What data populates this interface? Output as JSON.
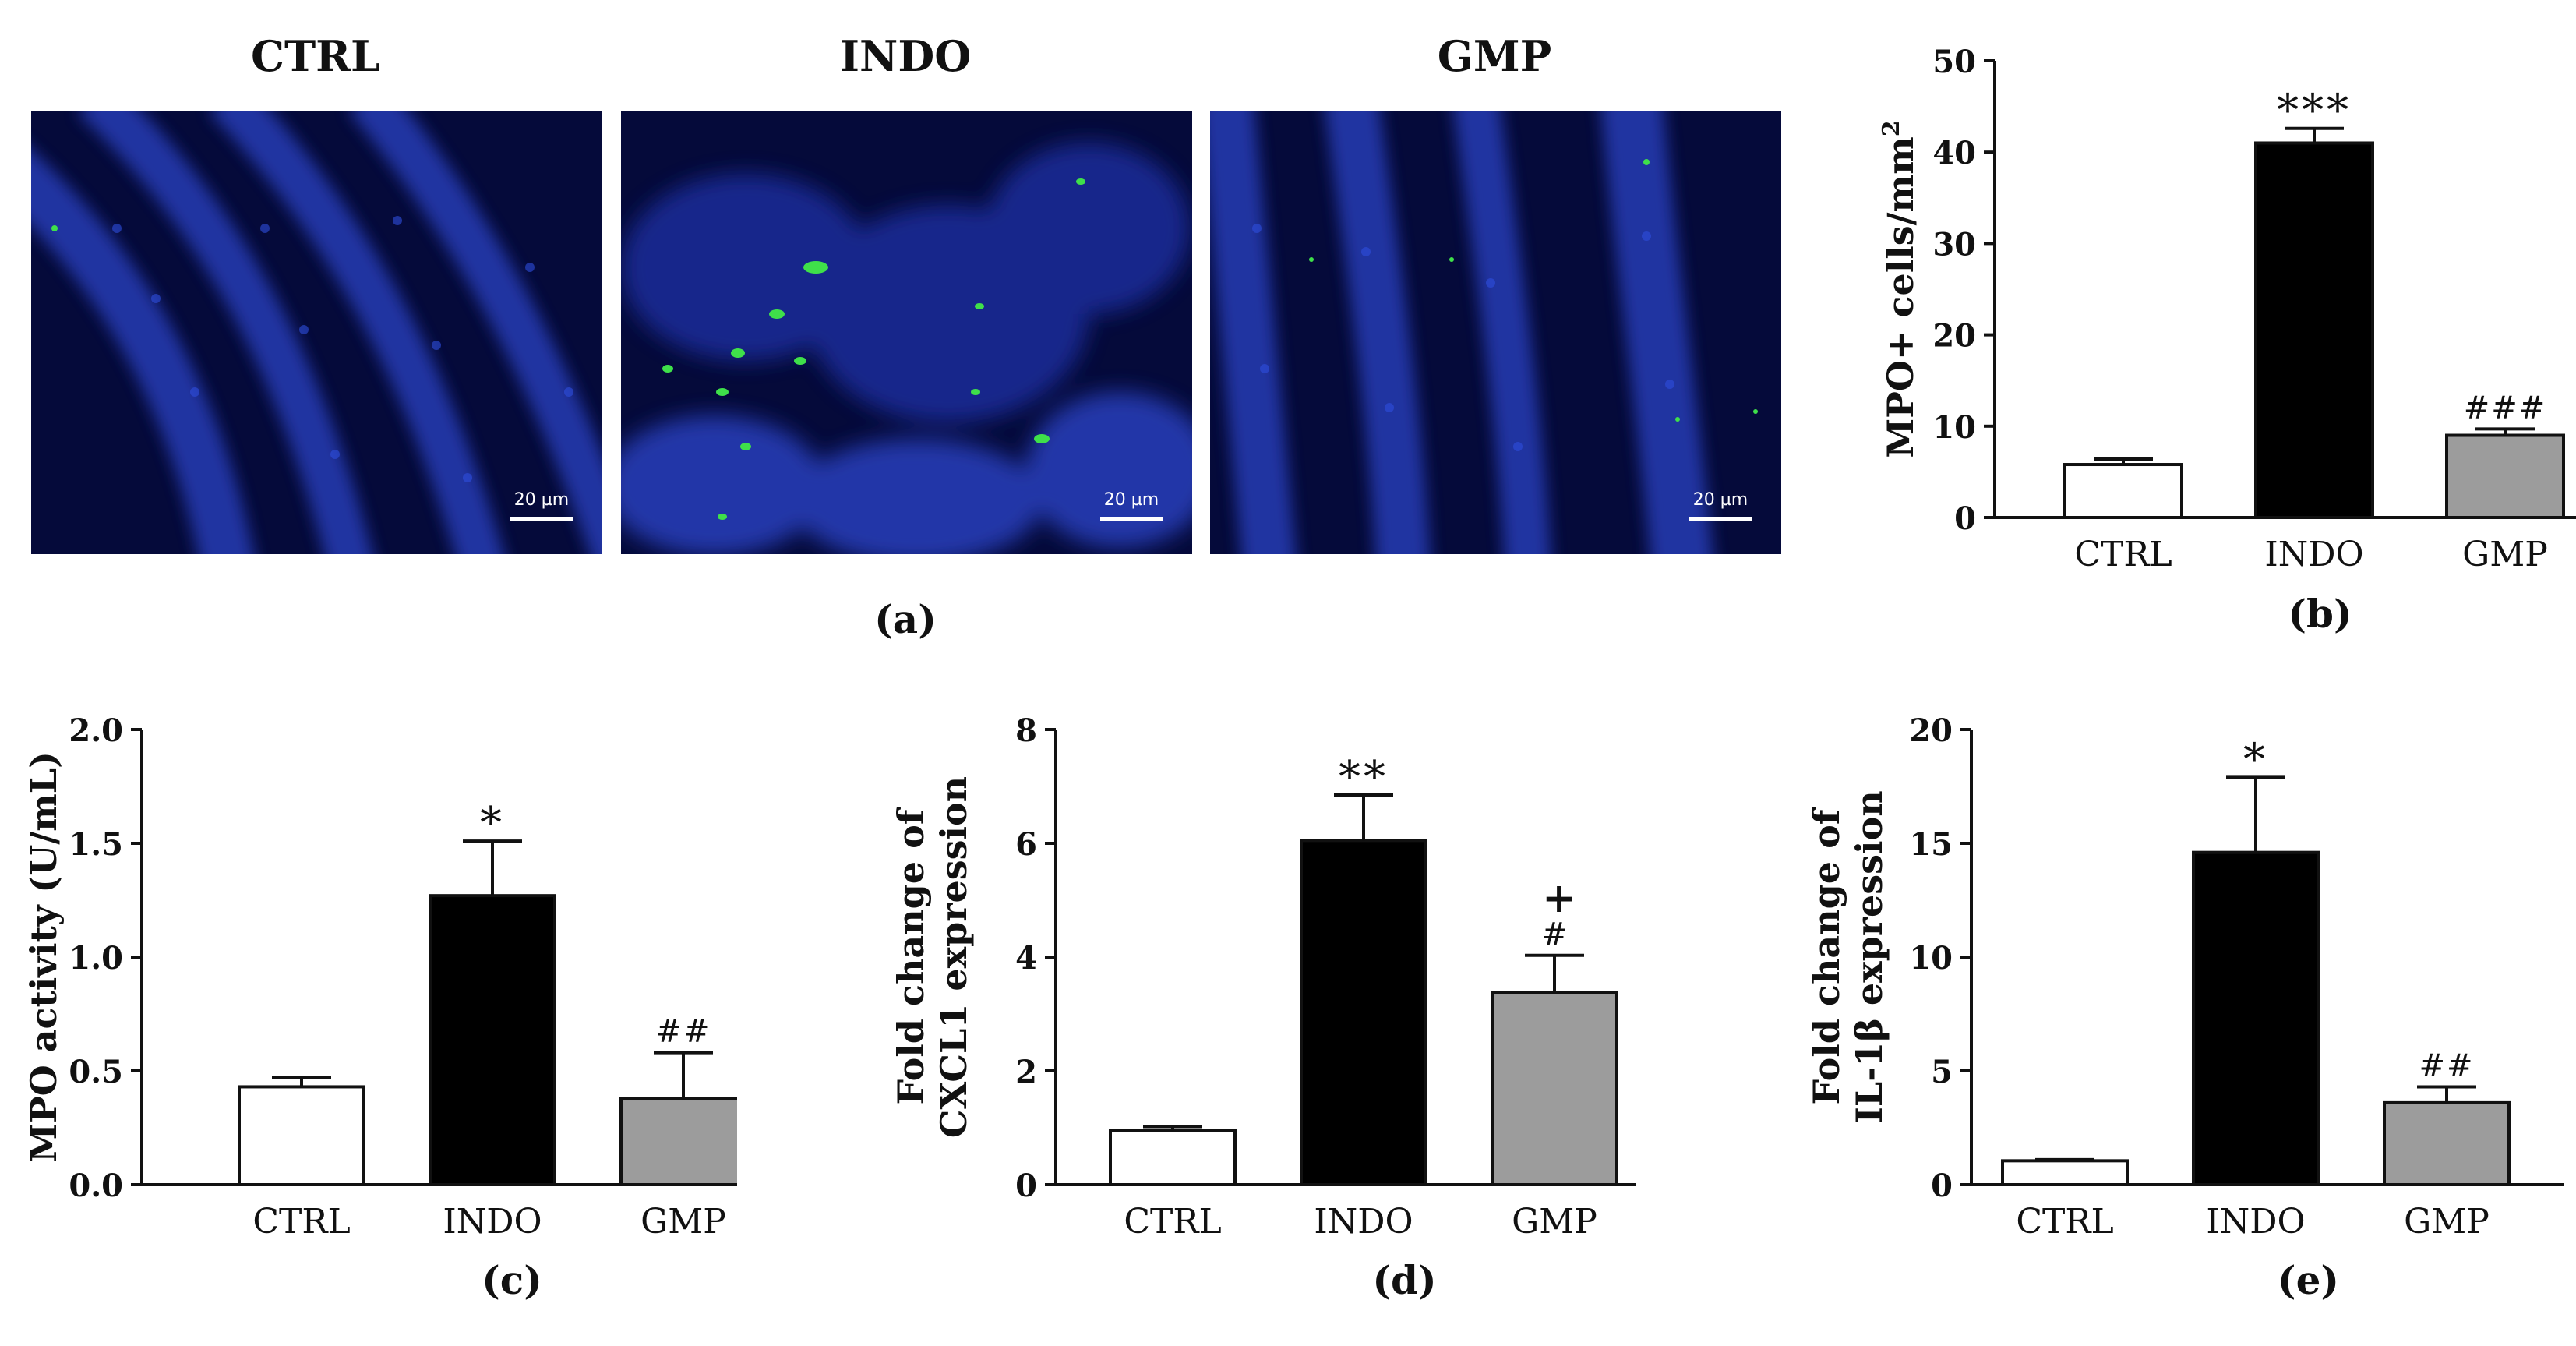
{
  "panel_a": {
    "images": [
      {
        "label": "CTRL",
        "scalebar": "20 µm"
      },
      {
        "label": "INDO",
        "scalebar": "20 µm"
      },
      {
        "label": "GMP",
        "scalebar": "20 µm"
      }
    ],
    "caption": "(a)"
  },
  "colors": {
    "ctrl_fill": "#ffffff",
    "indo_fill": "#000000",
    "gmp_fill": "#9c9c9c",
    "nuclei": "#2b47c9",
    "mpo_signal": "#3fe04a",
    "tissue_bg": "#050a3a"
  },
  "chart_data": [
    {
      "type": "bar",
      "panel": "(b)",
      "categories": [
        "CTRL",
        "INDO",
        "GMP"
      ],
      "values": [
        5.8,
        41.0,
        9.0
      ],
      "errors": [
        0.6,
        1.6,
        0.7
      ],
      "annotations": [
        "",
        "***",
        "###"
      ],
      "ylabel": "MPO+ cells/mm2",
      "ylim": [
        0,
        50
      ],
      "yticks": [
        0,
        10,
        20,
        30,
        40,
        50
      ]
    },
    {
      "type": "bar",
      "panel": "(c)",
      "categories": [
        "CTRL",
        "INDO",
        "GMP"
      ],
      "values": [
        0.43,
        1.27,
        0.38
      ],
      "errors": [
        0.04,
        0.24,
        0.2
      ],
      "annotations": [
        "",
        "*",
        "##"
      ],
      "ylabel": "MPO activity (U/mL)",
      "ylim": [
        0,
        2.0
      ],
      "yticks": [
        "0.0",
        "0.5",
        "1.0",
        "1.5",
        "2.0"
      ]
    },
    {
      "type": "bar",
      "panel": "(d)",
      "categories": [
        "CTRL",
        "INDO",
        "GMP"
      ],
      "values": [
        0.95,
        6.05,
        3.38
      ],
      "errors": [
        0.07,
        0.8,
        0.65
      ],
      "annotations": [
        "",
        "**",
        "# +"
      ],
      "ylabel": [
        "Fold change of",
        "CXCL1 expression"
      ],
      "ylim": [
        0,
        8
      ],
      "yticks": [
        0,
        2,
        4,
        6,
        8
      ]
    },
    {
      "type": "bar",
      "panel": "(e)",
      "categories": [
        "CTRL",
        "INDO",
        "GMP"
      ],
      "values": [
        1.05,
        14.6,
        3.6
      ],
      "errors": [
        0.05,
        3.3,
        0.7
      ],
      "annotations": [
        "",
        "*",
        "##"
      ],
      "ylabel": [
        "Fold change of",
        "IL-1β expression"
      ],
      "ylim": [
        0,
        20
      ],
      "yticks": [
        0,
        5,
        10,
        15,
        20
      ]
    }
  ]
}
